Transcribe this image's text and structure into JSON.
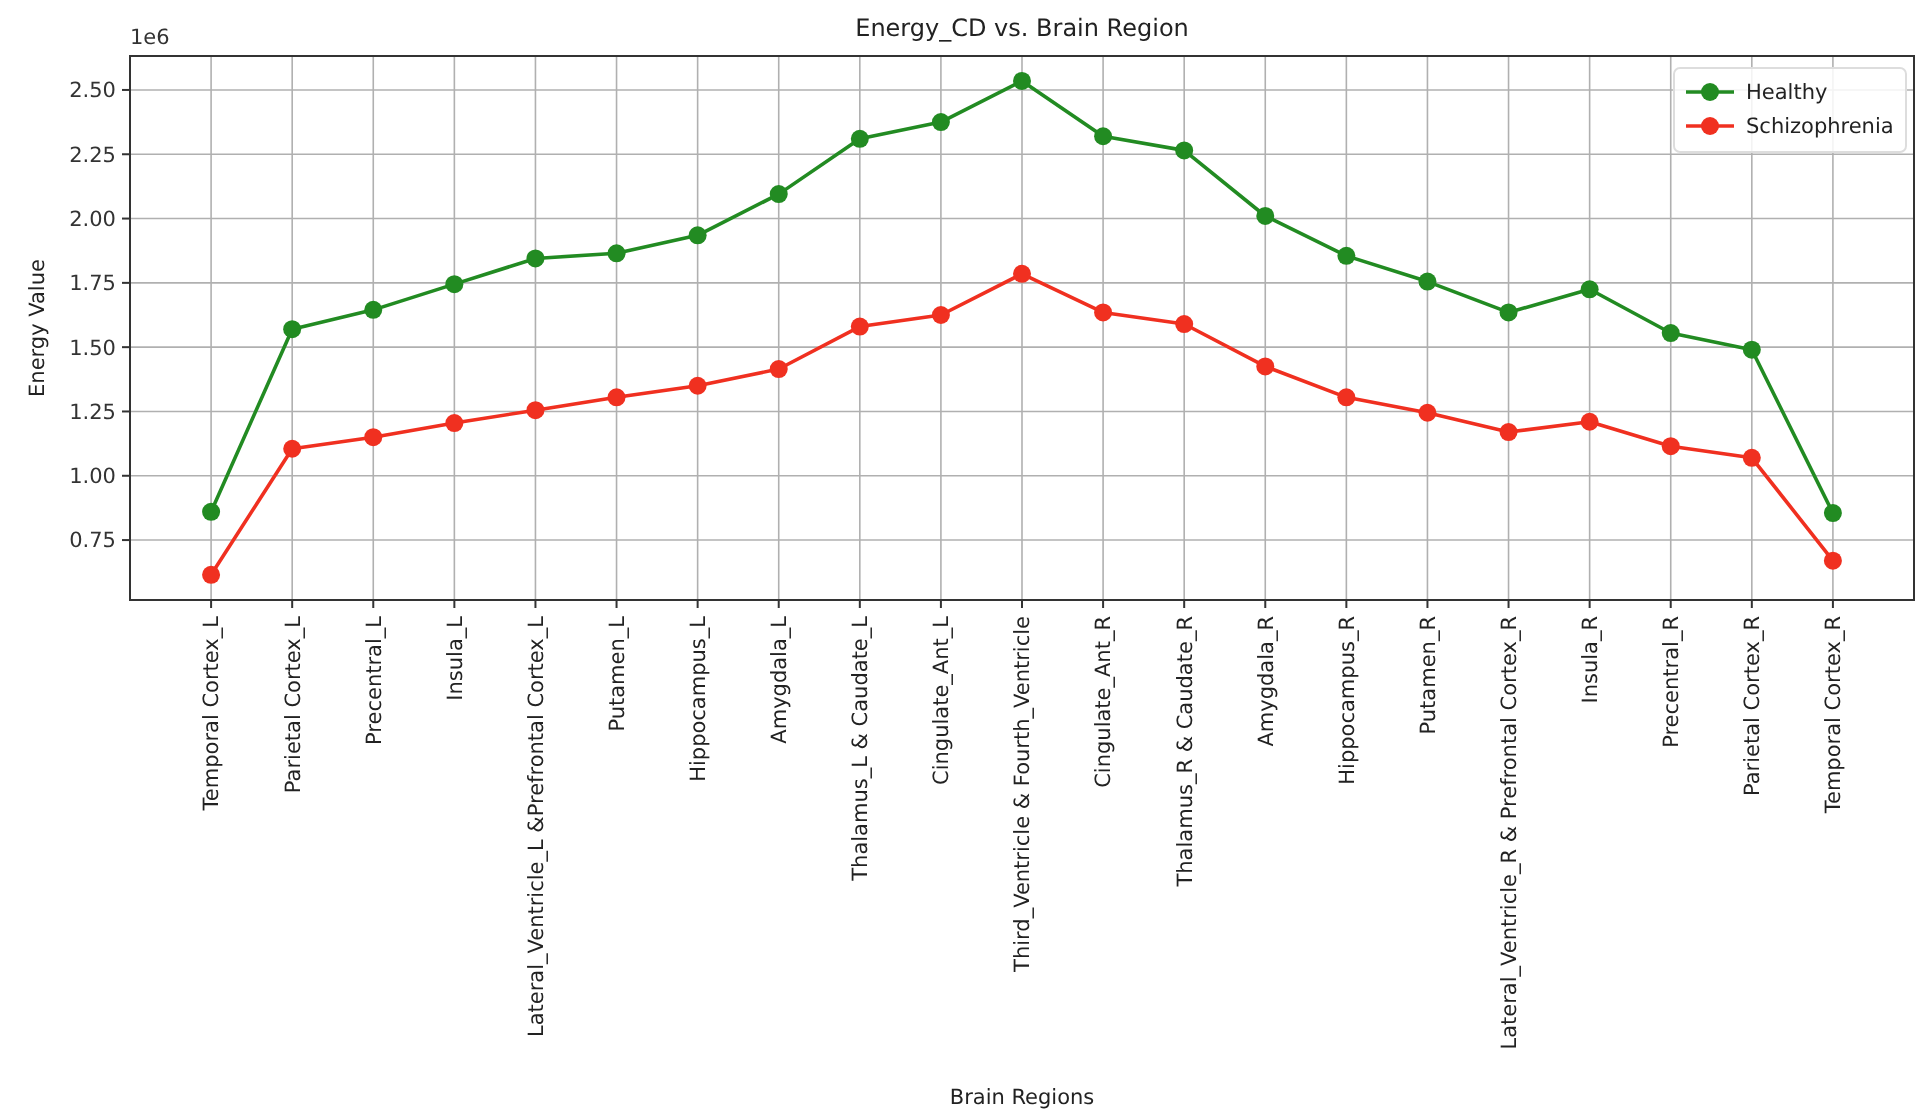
{
  "chart_data": {
    "type": "line",
    "title": "Energy_CD vs. Brain Region",
    "xlabel": "Brain Regions",
    "ylabel": "Energy Value",
    "annotations": [
      "1e6"
    ],
    "categories": [
      "Temporal Cortex_L",
      "Parietal Cortex_L",
      "Precentral_L",
      "Insula_L",
      "Lateral_Ventricle_L &Prefrontal Cortex_L",
      "Putamen_L",
      "Hippocampus_L",
      "Amygdala_L",
      "Thalamus_L & Caudate_L",
      "Cingulate_Ant_L",
      "Third_Ventricle & Fourth_Ventricle",
      "Cingulate_Ant_R",
      "Thalamus_R & Caudate_R",
      "Amygdala_R",
      "Hippocampus_R",
      "Putamen_R",
      "Lateral_Ventricle_R & Prefrontal Cortex_R",
      "Insula_R",
      "Precentral_R",
      "Parietal Cortex_R",
      "Temporal Cortex_R"
    ],
    "series": [
      {
        "name": "Healthy",
        "color": "#228b22",
        "values": [
          0.86,
          1.57,
          1.645,
          1.745,
          1.845,
          1.865,
          1.935,
          2.095,
          2.31,
          2.375,
          2.535,
          2.32,
          2.265,
          2.01,
          1.855,
          1.755,
          1.635,
          1.725,
          1.555,
          1.49,
          0.855
        ]
      },
      {
        "name": "Schizophrenia",
        "color": "#f03020",
        "values": [
          0.615,
          1.105,
          1.15,
          1.205,
          1.255,
          1.305,
          1.35,
          1.415,
          1.58,
          1.625,
          1.785,
          1.635,
          1.59,
          1.425,
          1.305,
          1.245,
          1.17,
          1.21,
          1.115,
          1.07,
          0.67
        ]
      }
    ],
    "ylim": [
      0.517,
      2.632
    ],
    "yticks": [
      {
        "value": 0.75,
        "label": "0.75"
      },
      {
        "value": 1,
        "label": "1.00"
      },
      {
        "value": 1.25,
        "label": "1.25"
      },
      {
        "value": 1.5,
        "label": "1.50"
      },
      {
        "value": 1.75,
        "label": "1.75"
      },
      {
        "value": 2,
        "label": "2.00"
      },
      {
        "value": 2.25,
        "label": "2.25"
      },
      {
        "value": 2.5,
        "label": "2.50"
      }
    ],
    "grid": true,
    "legend": "top right",
    "marker": "circle",
    "line_style": "solid"
  }
}
